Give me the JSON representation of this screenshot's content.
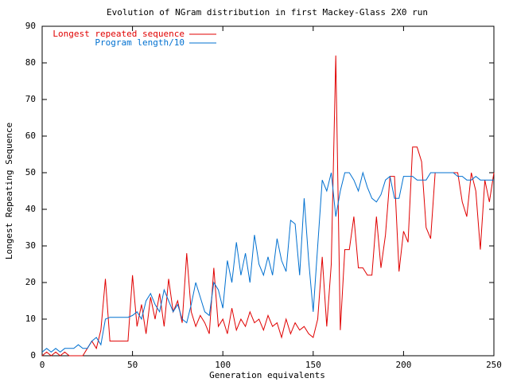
{
  "chart_data": {
    "type": "line",
    "title": "Evolution of NGram distribution in first Mackey-Glass 2X0 run",
    "x_label": "Generation equivalents",
    "y_label": "Longest Repeating Sequence",
    "x": [
      0,
      2.5,
      5,
      7.5,
      10,
      12.5,
      15,
      17.5,
      20,
      22.5,
      25,
      27.5,
      30,
      32.5,
      35,
      37.5,
      40,
      42.5,
      45,
      47.5,
      50,
      52.5,
      55,
      57.5,
      60,
      62.5,
      65,
      67.5,
      70,
      72.5,
      75,
      77.5,
      80,
      82.5,
      85,
      87.5,
      90,
      92.5,
      95,
      97.5,
      100,
      102.5,
      105,
      107.5,
      110,
      112.5,
      115,
      117.5,
      120,
      122.5,
      125,
      127.5,
      130,
      132.5,
      135,
      137.5,
      140,
      142.5,
      145,
      147.5,
      150,
      152.5,
      155,
      157.5,
      160,
      162.5,
      165,
      167.5,
      170,
      172.5,
      175,
      177.5,
      180,
      182.5,
      185,
      187.5,
      190,
      192.5,
      195,
      197.5,
      200,
      202.5,
      205,
      207.5,
      210,
      212.5,
      215,
      217.5,
      220,
      222.5,
      225,
      227.5,
      230,
      232.5,
      235,
      237.5,
      240,
      242.5,
      245,
      247.5,
      250
    ],
    "series": [
      {
        "name": "Longest repeated sequence",
        "color": "#e00000",
        "values": [
          0,
          1,
          0,
          1,
          0,
          1,
          0,
          0,
          0,
          0,
          2,
          4,
          2,
          7,
          21,
          4,
          4,
          4,
          4,
          4,
          22,
          8,
          14,
          6,
          16,
          10,
          17,
          8,
          21,
          12,
          15,
          9,
          28,
          12,
          8,
          11,
          9,
          6,
          24,
          8,
          10,
          6,
          13,
          7,
          10,
          8,
          12,
          9,
          10,
          7,
          11,
          8,
          9,
          5,
          10,
          6,
          9,
          7,
          8,
          6,
          5,
          10,
          27,
          8,
          25,
          82,
          7,
          29,
          29,
          38,
          24,
          24,
          22,
          22,
          38,
          24,
          33,
          49,
          49,
          23,
          34,
          31,
          57,
          57,
          53,
          35,
          32,
          50,
          50,
          50,
          50,
          50,
          50,
          42,
          38,
          50,
          45,
          29,
          48,
          42,
          50
        ]
      },
      {
        "name": "Program length/10",
        "color": "#0070d0",
        "values": [
          1,
          2,
          1,
          2,
          1,
          2,
          2,
          2,
          3,
          2,
          2,
          4,
          5,
          3,
          10,
          10.5,
          10.5,
          10.5,
          10.5,
          10.5,
          11,
          12,
          10,
          15,
          17,
          14,
          12,
          18,
          15,
          12,
          14,
          10,
          9,
          14,
          20,
          16,
          12,
          11,
          20,
          18,
          13,
          26,
          20,
          31,
          22,
          28,
          20,
          33,
          25,
          22,
          27,
          22,
          32,
          26,
          23,
          37,
          36,
          22,
          43,
          26,
          12,
          30,
          48,
          45,
          50,
          38,
          45,
          50,
          50,
          48,
          45,
          50,
          46,
          43,
          42,
          44,
          48,
          49,
          43,
          43,
          49,
          49,
          49,
          48,
          48,
          48,
          50,
          50,
          50,
          50,
          50,
          50,
          49,
          49,
          48,
          48,
          49,
          48,
          48,
          48,
          48
        ]
      }
    ],
    "xlim": [
      0,
      250
    ],
    "xticks": [
      0,
      50,
      100,
      150,
      200,
      250
    ],
    "ylim": [
      0,
      90
    ],
    "yticks": [
      0,
      10,
      20,
      30,
      40,
      50,
      60,
      70,
      80,
      90
    ],
    "legend": "upper left"
  }
}
